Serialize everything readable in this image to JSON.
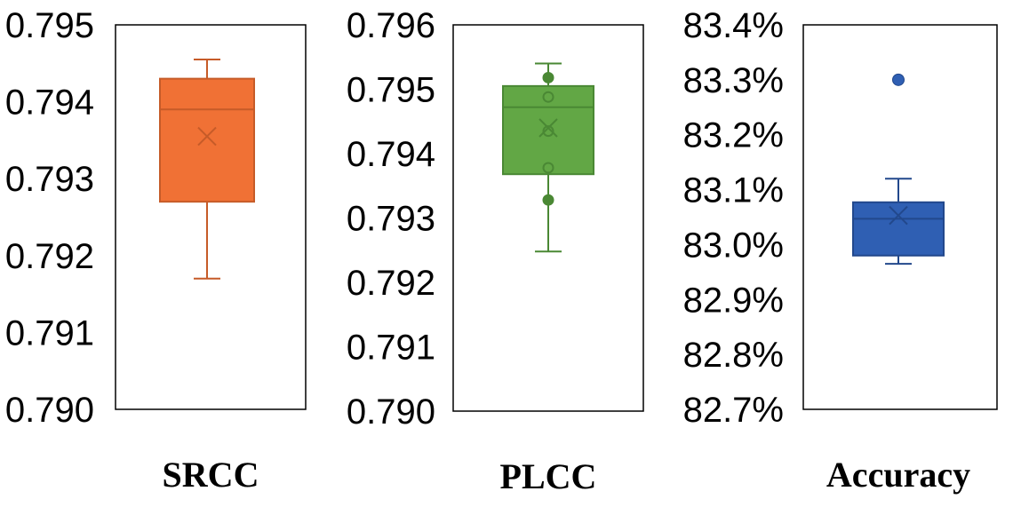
{
  "chart_data": [
    {
      "type": "box",
      "xlabel": "SRCC",
      "ylim": [
        0.79,
        0.795
      ],
      "ticks": [
        "0.790",
        "0.791",
        "0.792",
        "0.793",
        "0.794",
        "0.795"
      ],
      "color": "#f07135",
      "edge": "#c65b28",
      "min": 0.7917,
      "q1": 0.7927,
      "median": 0.7939,
      "q3": 0.7943,
      "max": 0.79455,
      "mean": 0.79355,
      "points": []
    },
    {
      "type": "box",
      "xlabel": "PLCC",
      "ylim": [
        0.79,
        0.796
      ],
      "ticks": [
        "0.790",
        "0.791",
        "0.792",
        "0.793",
        "0.794",
        "0.795",
        "0.796"
      ],
      "color": "#62a745",
      "edge": "#4a8834",
      "min": 0.79248,
      "q1": 0.79368,
      "median": 0.79472,
      "q3": 0.79505,
      "max": 0.7954,
      "mean": 0.7944,
      "points": [
        0.79518,
        0.79488,
        0.79435,
        0.79378,
        0.79328
      ]
    },
    {
      "type": "box",
      "xlabel": "Accuracy",
      "ylim": [
        82.7,
        83.4
      ],
      "ticks": [
        "82.7%",
        "82.8%",
        "82.9%",
        "83.0%",
        "83.1%",
        "83.2%",
        "83.3%",
        "83.4%"
      ],
      "color": "#2f5fb3",
      "edge": "#22488c",
      "min": 82.965,
      "q1": 82.98,
      "median": 83.047,
      "q3": 83.077,
      "max": 83.12,
      "mean": 83.053,
      "points": [],
      "outliers": [
        83.3
      ]
    }
  ]
}
